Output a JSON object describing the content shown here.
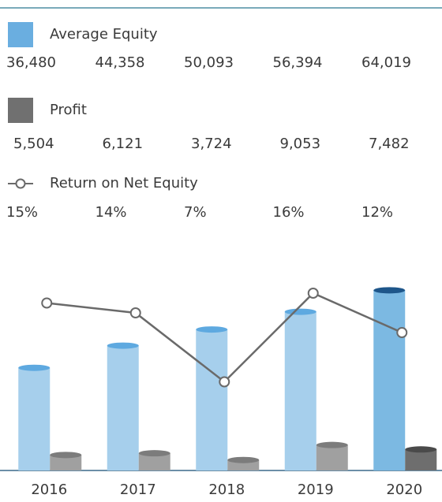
{
  "chart_data": {
    "type": "bar-line",
    "categories": [
      "2016",
      "2017",
      "2018",
      "2019",
      "2020"
    ],
    "series": [
      {
        "name": "Average Equity",
        "type": "bar",
        "color": "#6aaee0",
        "bar_colors": [
          "#a6cfec",
          "#a6cfec",
          "#a6cfec",
          "#a6cfec",
          "#7cb9e2"
        ],
        "top_colors": [
          "#5ea9e0",
          "#5ea9e0",
          "#5ea9e0",
          "#5ea9e0",
          "#1e568a"
        ],
        "values": [
          36480,
          44358,
          50093,
          56394,
          64019
        ],
        "value_labels": [
          "36,480",
          "44,358",
          "50,093",
          "56,394",
          "64,019"
        ]
      },
      {
        "name": "Profit",
        "type": "bar",
        "color": "#707070",
        "bar_colors": [
          "#a0a0a0",
          "#a0a0a0",
          "#a0a0a0",
          "#a0a0a0",
          "#6e6e6e"
        ],
        "top_colors": [
          "#7c7c7c",
          "#7c7c7c",
          "#7c7c7c",
          "#7c7c7c",
          "#4a4a4a"
        ],
        "values": [
          5504,
          6121,
          3724,
          9053,
          7482
        ],
        "value_labels": [
          "5,504",
          "6,121",
          "3,724",
          "9,053",
          "7,482"
        ]
      },
      {
        "name": "Return on Net Equity",
        "type": "line",
        "axis": "y2",
        "color": "#6a6a6a",
        "values": [
          15,
          14,
          7,
          16,
          12
        ],
        "value_labels": [
          "15%",
          "14%",
          "7%",
          "16%",
          "12%"
        ]
      }
    ],
    "ylim": [
      0,
      70000
    ],
    "y2lim": [
      -2,
      18
    ]
  }
}
